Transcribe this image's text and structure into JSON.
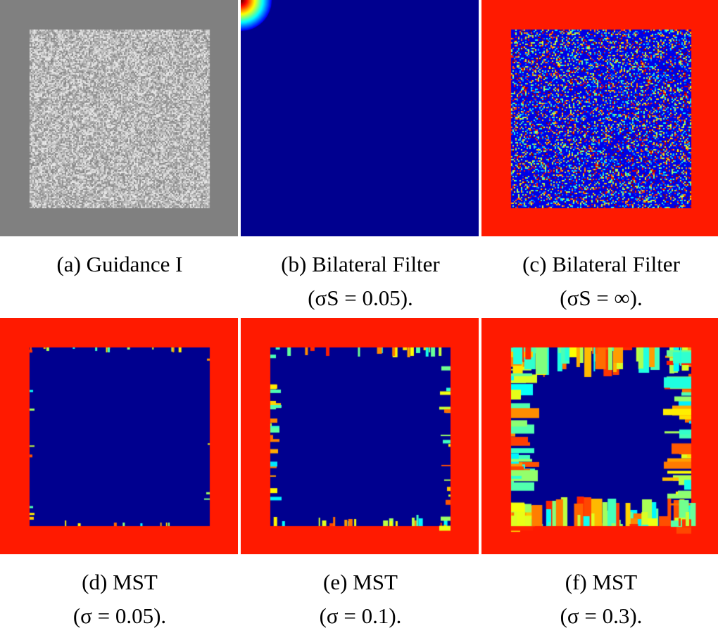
{
  "figure": {
    "panels": [
      {
        "id": "a",
        "caption": [
          "(a) Guidance I"
        ]
      },
      {
        "id": "b",
        "caption": [
          "(b) Bilateral Filter",
          "(σS = 0.05)."
        ]
      },
      {
        "id": "c",
        "caption": [
          "(c) Bilateral Filter",
          "(σS = ∞)."
        ]
      },
      {
        "id": "d",
        "caption": [
          "(d) MST",
          "(σ = 0.05)."
        ]
      },
      {
        "id": "e",
        "caption": [
          "(e) MST",
          "(σ = 0.1)."
        ]
      },
      {
        "id": "f",
        "caption": [
          "(f) MST",
          "(σ = 0.3)."
        ]
      }
    ],
    "colors": {
      "gray": "#808080",
      "red": "#ff1a00",
      "navy": "#00008f"
    }
  }
}
